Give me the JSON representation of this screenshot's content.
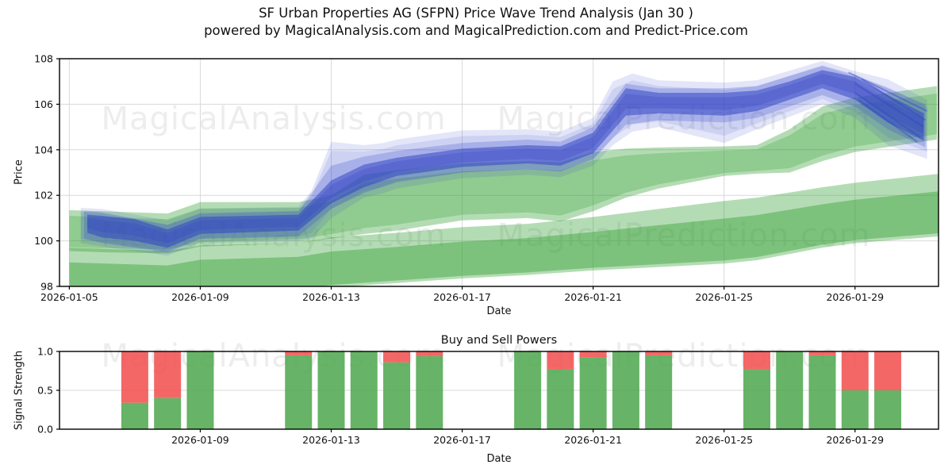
{
  "header": {
    "title_line1": "SF Urban Properties AG (SFPN) Price Wave Trend Analysis (Jan 30 )",
    "title_line2": "powered by MagicalAnalysis.com and MagicalPrediction.com and Predict-Price.com"
  },
  "watermarks": {
    "analysis": "MagicalAnalysis.com",
    "prediction": "MagicalPrediction.com",
    "color": "#ededed"
  },
  "chart_data": [
    {
      "type": "area",
      "name": "price-wave-trend",
      "xlabel": "Date",
      "ylabel": "Price",
      "x_unit": "day of 2026-01",
      "ylim": [
        98,
        108
      ],
      "yticks": [
        {
          "v": 98,
          "label": "98"
        },
        {
          "v": 100,
          "label": "100"
        },
        {
          "v": 102,
          "label": "102"
        },
        {
          "v": 104,
          "label": "104"
        },
        {
          "v": 106,
          "label": "106"
        },
        {
          "v": 108,
          "label": "108"
        }
      ],
      "xticks": [
        {
          "day": 5,
          "label": "2026-01-05"
        },
        {
          "day": 9,
          "label": "2026-01-09"
        },
        {
          "day": 13,
          "label": "2026-01-13"
        },
        {
          "day": 17,
          "label": "2026-01-17"
        },
        {
          "day": 21,
          "label": "2026-01-21"
        },
        {
          "day": 25,
          "label": "2026-01-25"
        },
        {
          "day": 29,
          "label": "2026-01-29"
        }
      ],
      "grid": "both",
      "bands": [
        {
          "name": "green-lower-fan",
          "color": "#2f9e2f",
          "layers": [
            {
              "op": 0.36,
              "ti": 0,
              "bi": 0
            },
            {
              "op": 0.42,
              "ti": 0.28,
              "bi": 0.05
            }
          ],
          "points": [
            [
              5,
              99.7,
              97.4
            ],
            [
              8,
              99.55,
              97.3
            ],
            [
              9,
              99.8,
              97.55
            ],
            [
              12,
              99.9,
              97.75
            ],
            [
              13,
              100.15,
              97.95
            ],
            [
              15,
              100.35,
              98.15
            ],
            [
              17,
              100.6,
              98.35
            ],
            [
              19,
              100.75,
              98.5
            ],
            [
              21,
              101.05,
              98.7
            ],
            [
              23,
              101.4,
              98.85
            ],
            [
              25,
              101.75,
              99.0
            ],
            [
              26,
              101.9,
              99.15
            ],
            [
              28,
              102.35,
              99.7
            ],
            [
              29,
              102.55,
              99.9
            ],
            [
              31.6,
              102.95,
              100.2
            ]
          ]
        },
        {
          "name": "green-upper-fan",
          "color": "#2f9e2f",
          "layers": [
            {
              "op": 0.36,
              "ti": 0,
              "bi": 0
            },
            {
              "op": 0.27,
              "ti": 0.14,
              "bi": 0.1
            }
          ],
          "points": [
            [
              5,
              101.35,
              99.55
            ],
            [
              6,
              101.3,
              99.5
            ],
            [
              8,
              101.2,
              99.45
            ],
            [
              9,
              101.7,
              99.75
            ],
            [
              12,
              101.7,
              99.9
            ],
            [
              13,
              102.0,
              100.1
            ],
            [
              14,
              102.9,
              100.3
            ],
            [
              15,
              103.1,
              100.45
            ],
            [
              17,
              103.4,
              100.9
            ],
            [
              19,
              103.5,
              101.0
            ],
            [
              20,
              103.45,
              100.85
            ],
            [
              21,
              103.9,
              101.3
            ],
            [
              22,
              104.05,
              101.9
            ],
            [
              23,
              104.1,
              102.3
            ],
            [
              25,
              104.15,
              102.85
            ],
            [
              26,
              104.2,
              102.95
            ],
            [
              27,
              104.9,
              103.0
            ],
            [
              28,
              105.9,
              103.5
            ],
            [
              29,
              106.3,
              103.9
            ],
            [
              31.5,
              106.8,
              104.45
            ]
          ]
        },
        {
          "name": "blue-outer-fan",
          "color": "#4152cf",
          "layers": [
            {
              "op": 0.15,
              "ti": 0,
              "bi": 0
            },
            {
              "op": 0.13,
              "ti": 0.12,
              "bi": 0.12
            }
          ],
          "points": [
            [
              5.35,
              101.45,
              99.9
            ],
            [
              6,
              101.4,
              99.75
            ],
            [
              8,
              100.9,
              99.35
            ],
            [
              9,
              101.4,
              99.9
            ],
            [
              12,
              101.5,
              100.0
            ],
            [
              12.4,
              102.2,
              100.1
            ],
            [
              13,
              104.35,
              101.0
            ],
            [
              14,
              104.2,
              101.9
            ],
            [
              14.6,
              104.3,
              102.1
            ],
            [
              15,
              104.45,
              102.3
            ],
            [
              17,
              104.85,
              102.75
            ],
            [
              19,
              104.9,
              102.9
            ],
            [
              20,
              104.8,
              102.8
            ],
            [
              21,
              105.4,
              103.3
            ],
            [
              21.6,
              107.0,
              104.2
            ],
            [
              22.2,
              107.35,
              104.8
            ],
            [
              23,
              107.05,
              105.0
            ],
            [
              25,
              106.95,
              104.3
            ],
            [
              26,
              107.05,
              104.9
            ],
            [
              28,
              107.9,
              106.0
            ],
            [
              29,
              107.45,
              105.4
            ],
            [
              30,
              107.1,
              104.2
            ],
            [
              31.2,
              106.2,
              103.6
            ]
          ]
        },
        {
          "name": "blue-mid-fan",
          "color": "#3a4ccd",
          "layers": [
            {
              "op": 0.25,
              "ti": 0,
              "bi": 0
            }
          ],
          "points": [
            [
              5.45,
              101.3,
              100.1
            ],
            [
              6,
              101.25,
              99.9
            ],
            [
              8,
              100.7,
              99.5
            ],
            [
              9,
              101.2,
              100.1
            ],
            [
              12,
              101.3,
              100.2
            ],
            [
              13,
              103.3,
              101.4
            ],
            [
              14,
              103.7,
              102.1
            ],
            [
              15,
              103.95,
              102.6
            ],
            [
              17,
              104.3,
              103.0
            ],
            [
              19,
              104.45,
              103.15
            ],
            [
              20,
              104.35,
              103.05
            ],
            [
              21,
              105.0,
              103.6
            ],
            [
              22,
              106.9,
              105.1
            ],
            [
              23,
              106.7,
              105.3
            ],
            [
              25,
              106.7,
              105.2
            ],
            [
              26,
              106.8,
              105.4
            ],
            [
              28,
              107.7,
              106.4
            ],
            [
              29,
              107.3,
              105.9
            ],
            [
              30,
              106.7,
              104.9
            ],
            [
              31.15,
              106.0,
              104.1
            ]
          ]
        },
        {
          "name": "blue-core-band",
          "color": "#2e41c4",
          "layers": [
            {
              "op": 0.52,
              "ti": 0,
              "bi": 0
            },
            {
              "op": 0.25,
              "ti": 0.2,
              "bi": 0.25
            }
          ],
          "points": [
            [
              5.55,
              101.15,
              100.35
            ],
            [
              6,
              101.1,
              100.15
            ],
            [
              7,
              100.95,
              100.0
            ],
            [
              8,
              100.5,
              99.7
            ],
            [
              9,
              101.05,
              100.3
            ],
            [
              12,
              101.15,
              100.45
            ],
            [
              13,
              102.65,
              101.65
            ],
            [
              14,
              103.35,
              102.35
            ],
            [
              15,
              103.65,
              102.85
            ],
            [
              16,
              103.85,
              103.05
            ],
            [
              17,
              104.05,
              103.25
            ],
            [
              19,
              104.2,
              103.4
            ],
            [
              20,
              104.15,
              103.3
            ],
            [
              21,
              104.75,
              103.85
            ],
            [
              22,
              106.7,
              105.5
            ],
            [
              23,
              106.5,
              105.6
            ],
            [
              25,
              106.5,
              105.5
            ],
            [
              26,
              106.6,
              105.7
            ],
            [
              27,
              107.0,
              106.2
            ],
            [
              28,
              107.5,
              106.7
            ],
            [
              29,
              107.2,
              106.2
            ],
            [
              30,
              106.4,
              105.2
            ],
            [
              31.1,
              105.6,
              104.4
            ]
          ]
        }
      ],
      "streaks": {
        "color": "#3448c5",
        "opacity": 0.45,
        "lines": [
          [
            29,
            106.9,
            31.1,
            105.0
          ],
          [
            29,
            106.5,
            31.0,
            104.55
          ],
          [
            29.1,
            106.2,
            30.9,
            104.35
          ],
          [
            29.2,
            107.1,
            31.15,
            105.3
          ],
          [
            28.8,
            107.4,
            31.2,
            105.7
          ]
        ]
      }
    },
    {
      "type": "bar",
      "name": "buy-sell-powers",
      "title": "Buy and Sell Powers",
      "xlabel": "Date",
      "ylabel": "Signal Strength",
      "ylim": [
        0,
        1
      ],
      "yticks": [
        {
          "v": 0,
          "label": "0.0"
        },
        {
          "v": 0.5,
          "label": "0.5"
        },
        {
          "v": 1,
          "label": "1.0"
        }
      ],
      "xticks": [
        {
          "day": 9,
          "label": "2026-01-09"
        },
        {
          "day": 13,
          "label": "2026-01-13"
        },
        {
          "day": 17,
          "label": "2026-01-17"
        },
        {
          "day": 21,
          "label": "2026-01-21"
        },
        {
          "day": 25,
          "label": "2026-01-25"
        },
        {
          "day": 29,
          "label": "2026-01-29"
        }
      ],
      "grid": "horizontal",
      "categories": [
        "2026-01-07",
        "2026-01-08",
        "2026-01-09",
        "2026-01-12",
        "2026-01-13",
        "2026-01-14",
        "2026-01-15",
        "2026-01-16",
        "2026-01-19",
        "2026-01-20",
        "2026-01-21",
        "2026-01-22",
        "2026-01-23",
        "2026-01-26",
        "2026-01-27",
        "2026-01-28",
        "2026-01-29",
        "2026-01-30"
      ],
      "days": [
        7,
        8,
        9,
        12,
        13,
        14,
        15,
        16,
        19,
        20,
        21,
        22,
        23,
        26,
        27,
        28,
        29,
        30
      ],
      "series": [
        {
          "name": "buy-power",
          "color": "#4ca64c",
          "values": [
            0.34,
            0.4,
            1.0,
            0.95,
            1.0,
            1.0,
            0.86,
            0.94,
            1.0,
            0.77,
            0.92,
            1.0,
            0.95,
            0.77,
            1.0,
            0.95,
            0.5,
            0.5
          ]
        },
        {
          "name": "sell-power",
          "color": "#f24c4c",
          "values": [
            0.66,
            0.6,
            0.0,
            0.05,
            0.0,
            0.0,
            0.14,
            0.06,
            0.0,
            0.23,
            0.08,
            0.0,
            0.05,
            0.23,
            0.0,
            0.05,
            0.5,
            0.5
          ]
        }
      ]
    }
  ]
}
